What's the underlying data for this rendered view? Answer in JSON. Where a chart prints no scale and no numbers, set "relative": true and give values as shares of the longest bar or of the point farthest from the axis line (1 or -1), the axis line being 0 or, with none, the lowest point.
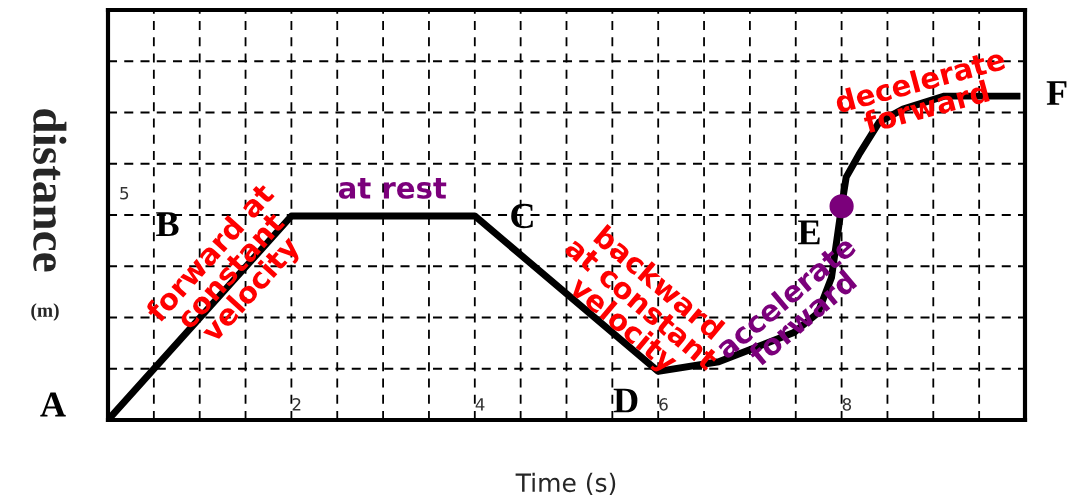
{
  "chart_data": {
    "type": "line",
    "xlabel": "Time (s)",
    "ylabel": "distance (m)",
    "xlim": [
      0,
      10
    ],
    "relative": true,
    "xticks": [
      {
        "value": 0,
        "label": null
      },
      {
        "value": 0.5,
        "label": null
      },
      {
        "value": 1,
        "label": null
      },
      {
        "value": 1.5,
        "label": null
      },
      2,
      {
        "value": 2.5,
        "label": null
      },
      {
        "value": 3,
        "label": null
      },
      {
        "value": 3.5,
        "label": null
      },
      4,
      {
        "value": 4.5,
        "label": null
      },
      {
        "value": 5,
        "label": null
      },
      {
        "value": 5.5,
        "label": null
      },
      6,
      {
        "value": 6.5,
        "label": null
      },
      {
        "value": 7,
        "label": null
      },
      {
        "value": 7.5,
        "label": null
      },
      8,
      {
        "value": 8.5,
        "label": null
      },
      {
        "value": 9,
        "label": null
      },
      {
        "value": 9.5,
        "label": null
      },
      {
        "value": 10,
        "label": null
      }
    ],
    "grid": true,
    "series": [
      {
        "color": "#000000",
        "x": [
          0,
          2,
          4,
          6,
          6.66,
          7.48,
          7.74,
          7.89,
          7.95,
          8.0,
          8.05,
          8.19,
          8.41,
          8.67,
          9.12,
          9.95
        ],
        "values": [
          0,
          0.63,
          0.63,
          0.15,
          0.18,
          0.27,
          0.33,
          0.44,
          0.56,
          0.66,
          0.75,
          0.82,
          0.92,
          0.96,
          1,
          1
        ]
      },
      {
        "type": "scatter",
        "color": "#7b007b",
        "marker": "circle",
        "x": [
          8
        ],
        "values": [
          0.66
        ]
      }
    ],
    "annotations": [
      "5",
      "A",
      "B",
      "C",
      "D",
      "E",
      "F",
      "forward at\nconstant\nvelocity",
      "at rest",
      "backward\nat constant\nvelocity",
      "accelerate\nforward",
      "decelerate\nforward"
    ]
  }
}
